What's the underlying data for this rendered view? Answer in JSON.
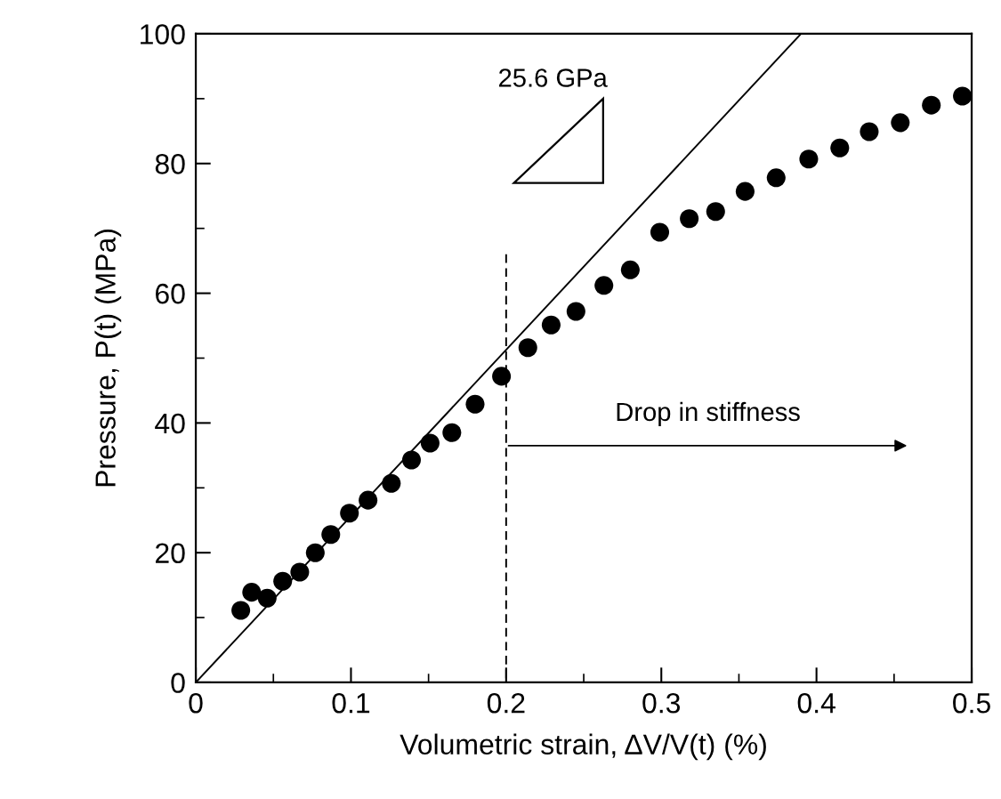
{
  "chart_data": {
    "type": "scatter",
    "xlabel": "Volumetric strain, ΔV/V(t) (%)",
    "ylabel": "Pressure, P(t) (MPa)",
    "xlim": [
      0,
      0.5
    ],
    "ylim": [
      0,
      100
    ],
    "xticks": [
      0,
      0.1,
      0.2,
      0.3,
      0.4,
      0.5
    ],
    "yticks": [
      0,
      20,
      40,
      60,
      80,
      100
    ],
    "grid": false,
    "legend": false,
    "series": [
      {
        "color": "#000000",
        "marker": "circle",
        "x": [
          0.029,
          0.036,
          0.046,
          0.056,
          0.067,
          0.077,
          0.087,
          0.099,
          0.111,
          0.126,
          0.139,
          0.151,
          0.165,
          0.18,
          0.197,
          0.214,
          0.229,
          0.245,
          0.263,
          0.28,
          0.299,
          0.318,
          0.335,
          0.354,
          0.374,
          0.395,
          0.415,
          0.434,
          0.454,
          0.474,
          0.494
        ],
        "values": [
          11.1,
          13.9,
          13.0,
          15.6,
          17.0,
          20.0,
          22.8,
          26.1,
          28.1,
          30.7,
          34.3,
          36.9,
          38.5,
          42.9,
          47.2,
          51.6,
          55.1,
          57.2,
          61.2,
          63.6,
          69.4,
          71.5,
          72.6,
          75.7,
          77.8,
          80.7,
          82.4,
          84.9,
          86.3,
          89.0,
          90.4
        ]
      },
      {
        "type": "line",
        "color": "#000000",
        "line_style": "solid",
        "x": [
          0,
          0.39
        ],
        "values": [
          0,
          100
        ]
      },
      {
        "type": "line",
        "color": "#000000",
        "line_style": "dashed",
        "x": [
          0.2,
          0.2
        ],
        "values": [
          66,
          0
        ]
      }
    ],
    "annotations": [
      "25.6 GPa",
      "Drop in stiffness"
    ]
  }
}
